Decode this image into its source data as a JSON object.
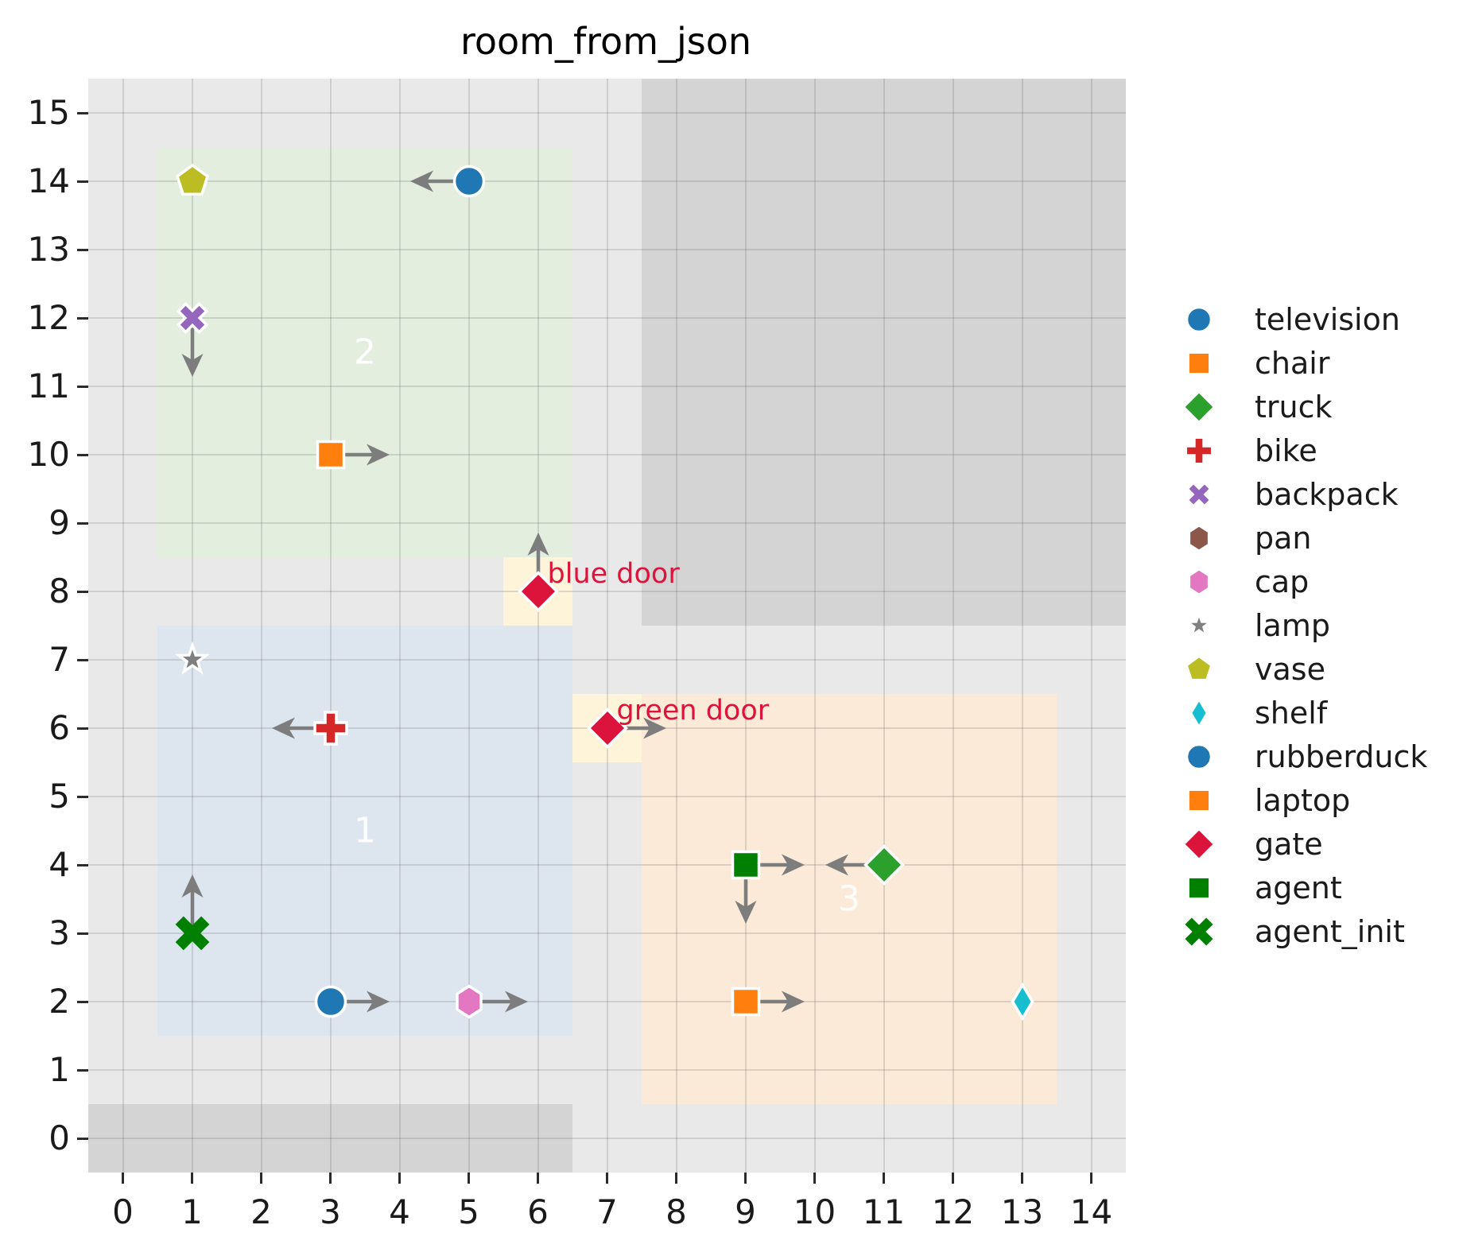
{
  "title": "room_from_json",
  "axes": {
    "x_ticks": [
      "0",
      "1",
      "2",
      "3",
      "4",
      "5",
      "6",
      "7",
      "8",
      "9",
      "10",
      "11",
      "12",
      "13",
      "14"
    ],
    "y_ticks": [
      "0",
      "1",
      "2",
      "3",
      "4",
      "5",
      "6",
      "7",
      "8",
      "9",
      "10",
      "11",
      "12",
      "13",
      "14",
      "15"
    ]
  },
  "chart_data": {
    "type": "scatter",
    "title": "room_from_json",
    "xlim": [
      -0.5,
      14.5
    ],
    "ylim": [
      -0.5,
      15.5
    ],
    "grid": true,
    "legend_position": "right-outside",
    "colors": {
      "plot_background": "#e9e9e9",
      "wall": "#d4d4d4",
      "grid": "#cfcfcf",
      "arrow": "#7d7d7d",
      "door_cell": "#fdf4da",
      "door_text": "#dc143c",
      "room_label_text": "#ffffff"
    },
    "walls": [
      {
        "name": "wall-top-right",
        "x": [
          7.5,
          14.5
        ],
        "y": [
          7.5,
          15.5
        ]
      },
      {
        "name": "wall-bottom-left",
        "x": [
          -0.5,
          6.5
        ],
        "y": [
          -0.5,
          0.5
        ]
      }
    ],
    "rooms": [
      {
        "label": "1",
        "x": [
          0.5,
          6.5
        ],
        "y": [
          1.5,
          7.5
        ],
        "color": "#dde6ef",
        "label_pos": [
          3.5,
          4.5
        ]
      },
      {
        "label": "2",
        "x": [
          0.5,
          6.5
        ],
        "y": [
          8.5,
          14.5
        ],
        "color": "#e3eedf",
        "label_pos": [
          3.5,
          11.5
        ]
      },
      {
        "label": "3",
        "x": [
          7.5,
          13.5
        ],
        "y": [
          0.5,
          6.5
        ],
        "color": "#fbead7",
        "label_pos": [
          10.5,
          3.5
        ]
      }
    ],
    "doors": [
      {
        "label": "blue door",
        "marker": [
          6,
          8
        ],
        "cell_x": [
          5.5,
          6.5
        ],
        "cell_y": [
          7.5,
          8.5
        ]
      },
      {
        "label": "green door",
        "marker": [
          7,
          6
        ],
        "cell_x": [
          6.5,
          7.5
        ],
        "cell_y": [
          5.5,
          6.5
        ]
      }
    ],
    "points": [
      {
        "name": "vase",
        "shape": "pentagon",
        "color": "#bcbd22",
        "x": 1,
        "y": 14,
        "arrows": []
      },
      {
        "name": "television",
        "shape": "circle",
        "color": "#1f77b4",
        "x": 5,
        "y": 14,
        "arrows": [
          "left"
        ]
      },
      {
        "name": "backpack",
        "shape": "x",
        "color": "#9467bd",
        "x": 1,
        "y": 12,
        "arrows": [
          "down"
        ]
      },
      {
        "name": "chair",
        "shape": "square",
        "color": "#ff7f0e",
        "x": 3,
        "y": 10,
        "arrows": [
          "right"
        ]
      },
      {
        "name": "gate",
        "shape": "diamond",
        "color": "#dc143c",
        "x": 6,
        "y": 8,
        "arrows": [
          "up"
        ]
      },
      {
        "name": "lamp",
        "shape": "star",
        "color": "#7f7f7f",
        "x": 1,
        "y": 7,
        "arrows": []
      },
      {
        "name": "bike",
        "shape": "plus",
        "color": "#d62728",
        "x": 3,
        "y": 6,
        "arrows": [
          "left"
        ]
      },
      {
        "name": "gate",
        "shape": "diamond",
        "color": "#dc143c",
        "x": 7,
        "y": 6,
        "arrows": [
          "right"
        ]
      },
      {
        "name": "agent_init",
        "shape": "x-plain",
        "color": "#008000",
        "x": 1,
        "y": 3,
        "arrows": [
          "up"
        ]
      },
      {
        "name": "rubberduck",
        "shape": "circle",
        "color": "#1f77b4",
        "x": 3,
        "y": 2,
        "arrows": [
          "right"
        ]
      },
      {
        "name": "cap",
        "shape": "hexagon",
        "color": "#e377c2",
        "x": 5,
        "y": 2,
        "arrows": [
          "right"
        ]
      },
      {
        "name": "agent",
        "shape": "square",
        "color": "#008000",
        "x": 9,
        "y": 4,
        "arrows": [
          "right",
          "down"
        ]
      },
      {
        "name": "truck",
        "shape": "diamond",
        "color": "#2ca02c",
        "x": 11,
        "y": 4,
        "arrows": [
          "left"
        ]
      },
      {
        "name": "laptop",
        "shape": "square",
        "color": "#ff7f0e",
        "x": 9,
        "y": 2,
        "arrows": [
          "right"
        ]
      },
      {
        "name": "shelf",
        "shape": "thin-diamond",
        "color": "#17becf",
        "x": 13,
        "y": 2,
        "arrows": []
      }
    ],
    "legend": [
      {
        "label": "television",
        "shape": "circle",
        "color": "#1f77b4"
      },
      {
        "label": "chair",
        "shape": "square",
        "color": "#ff7f0e"
      },
      {
        "label": "truck",
        "shape": "diamond",
        "color": "#2ca02c"
      },
      {
        "label": "bike",
        "shape": "plus",
        "color": "#d62728"
      },
      {
        "label": "backpack",
        "shape": "x",
        "color": "#9467bd"
      },
      {
        "label": "pan",
        "shape": "hexagon",
        "color": "#8c564b"
      },
      {
        "label": "cap",
        "shape": "hexagon",
        "color": "#e377c2"
      },
      {
        "label": "lamp",
        "shape": "star",
        "color": "#7f7f7f"
      },
      {
        "label": "vase",
        "shape": "pentagon",
        "color": "#bcbd22"
      },
      {
        "label": "shelf",
        "shape": "thin-diamond",
        "color": "#17becf"
      },
      {
        "label": "rubberduck",
        "shape": "circle",
        "color": "#1f77b4"
      },
      {
        "label": "laptop",
        "shape": "square",
        "color": "#ff7f0e"
      },
      {
        "label": "gate",
        "shape": "diamond",
        "color": "#dc143c"
      },
      {
        "label": "agent",
        "shape": "square",
        "color": "#008000"
      },
      {
        "label": "agent_init",
        "shape": "x-plain",
        "color": "#008000"
      }
    ]
  }
}
